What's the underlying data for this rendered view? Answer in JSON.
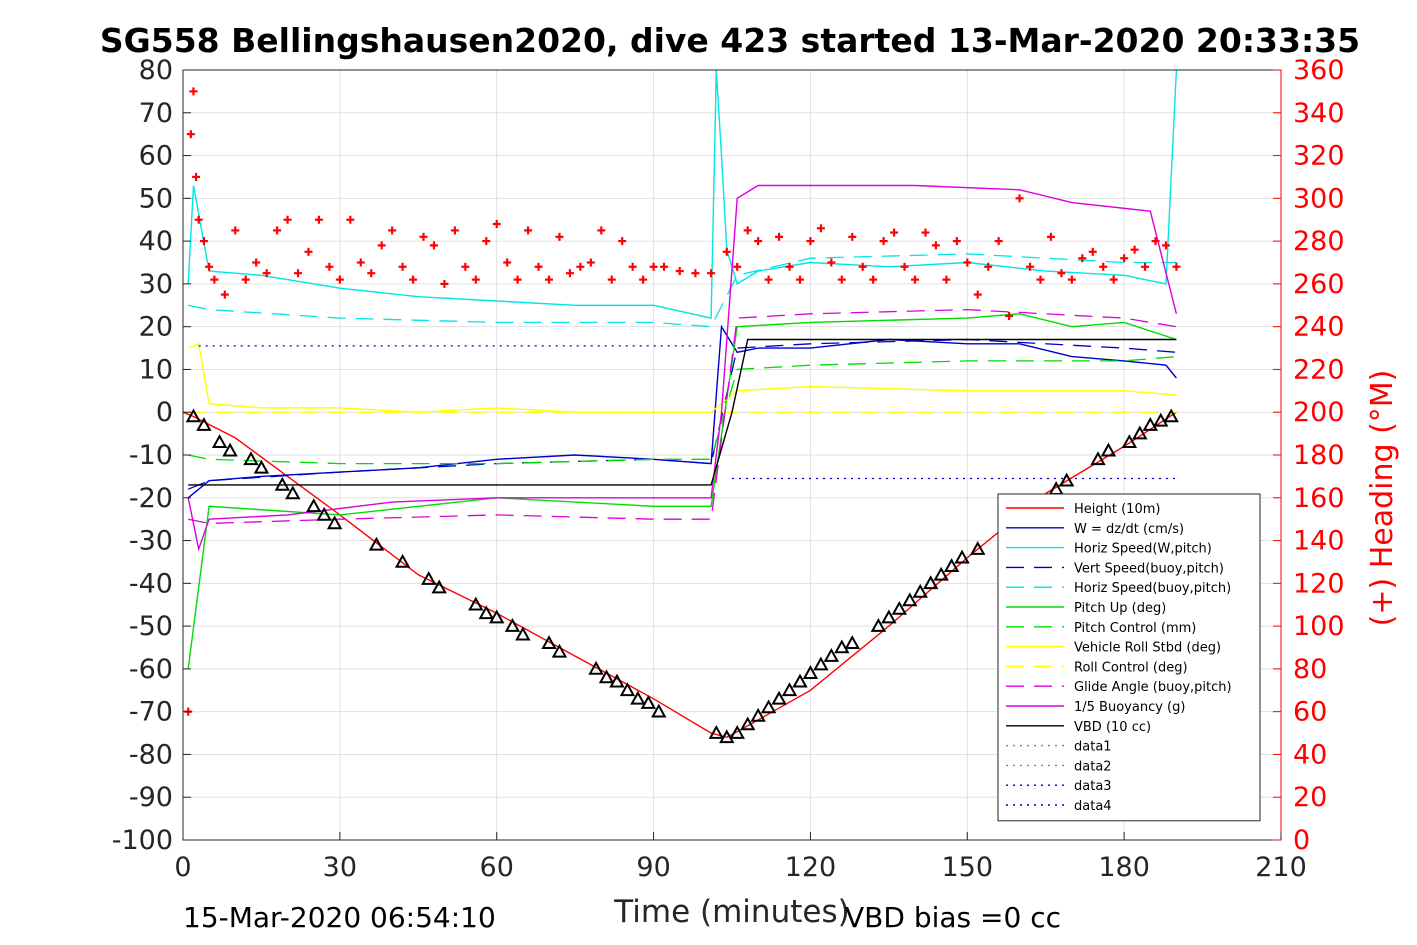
{
  "chart_data": {
    "type": "line",
    "title": "SG558 Bellingshausen2020, dive 423 started 13-Mar-2020 20:33:35",
    "xlabel": "Time (minutes)",
    "ylabel_right": "(+) Heading (°M)",
    "xlim": [
      0,
      210
    ],
    "ylim_left": [
      -100,
      80
    ],
    "ylim_right": [
      0,
      360
    ],
    "x_ticks": [
      "0",
      "30",
      "60",
      "90",
      "120",
      "150",
      "180",
      "210"
    ],
    "y_ticks_left": [
      "80",
      "70",
      "60",
      "50",
      "40",
      "30",
      "20",
      "10",
      "0",
      "-10",
      "-20",
      "-30",
      "-40",
      "-50",
      "-60",
      "-70",
      "-80",
      "-90",
      "-100"
    ],
    "y_ticks_right": [
      "360",
      "340",
      "320",
      "300",
      "280",
      "260",
      "240",
      "220",
      "200",
      "180",
      "160",
      "140",
      "120",
      "100",
      "80",
      "60",
      "40",
      "20",
      "0"
    ],
    "grid": true,
    "legend_position": "lower-right",
    "footer_left": "15-Mar-2020 06:54:10",
    "footer_right": "VBD bias =0 cc",
    "colors": {
      "height": "#ff0000",
      "w": "#0000cc",
      "horiz_speed": "#00e5e5",
      "pitch": "#00dd00",
      "roll": "#ffff00",
      "glide": "#dd00dd",
      "vbd": "#000000",
      "heading": "#ff0000"
    },
    "series": [
      {
        "name": "Height (10m)",
        "color": "#ff0000",
        "style": "solid",
        "x": [
          0,
          2,
          10,
          20,
          30,
          45,
          60,
          75,
          90,
          101,
          104,
          107,
          120,
          135,
          150,
          165,
          180,
          190
        ],
        "y": [
          0,
          -1,
          -6,
          -15,
          -24,
          -38,
          -47,
          -57,
          -67,
          -75,
          -76,
          -74,
          -65,
          -50,
          -34,
          -19,
          -8,
          0
        ]
      },
      {
        "name": "W = dz/dt (cm/s)",
        "color": "#0000cc",
        "style": "solid",
        "x": [
          1,
          5,
          15,
          30,
          45,
          60,
          75,
          90,
          101,
          103,
          106,
          110,
          120,
          135,
          150,
          160,
          170,
          180,
          188,
          190
        ],
        "y": [
          -20,
          -16,
          -15,
          -14,
          -13,
          -11,
          -10,
          -11,
          -12,
          20,
          14,
          15,
          15,
          17,
          16,
          16,
          13,
          12,
          11,
          8
        ]
      },
      {
        "name": "Horiz Speed(W,pitch)",
        "color": "#00e5e5",
        "style": "solid",
        "x": [
          1,
          2,
          5,
          15,
          30,
          45,
          60,
          75,
          90,
          101,
          102,
          103,
          104,
          106,
          110,
          120,
          135,
          150,
          165,
          180,
          188,
          190
        ],
        "y": [
          30,
          53,
          33,
          32,
          29,
          27,
          26,
          25,
          25,
          22,
          80,
          60,
          38,
          30,
          33,
          35,
          34,
          35,
          33,
          32,
          30,
          80
        ]
      },
      {
        "name": "Vert Speed(buoy,pitch)",
        "color": "#0000cc",
        "style": "dashed",
        "x": [
          1,
          5,
          30,
          60,
          90,
          101,
          106,
          120,
          150,
          180,
          190
        ],
        "y": [
          -18,
          -16,
          -14,
          -12,
          -11,
          -12,
          15,
          16,
          17,
          15,
          14
        ]
      },
      {
        "name": "Horiz Speed(buoy,pitch)",
        "color": "#00e5e5",
        "style": "dashed",
        "x": [
          1,
          5,
          30,
          60,
          90,
          101,
          106,
          120,
          150,
          180,
          190
        ],
        "y": [
          25,
          24,
          22,
          21,
          21,
          20,
          32,
          36,
          37,
          35,
          35
        ]
      },
      {
        "name": "Pitch Up (deg)",
        "color": "#00dd00",
        "style": "solid",
        "x": [
          1,
          5,
          30,
          60,
          90,
          101,
          106,
          120,
          150,
          160,
          170,
          180,
          190
        ],
        "y": [
          -60,
          -22,
          -24,
          -20,
          -22,
          -22,
          20,
          21,
          22,
          23,
          20,
          21,
          17
        ]
      },
      {
        "name": "Pitch Control (mm)",
        "color": "#00dd00",
        "style": "dashed",
        "x": [
          1,
          5,
          30,
          60,
          90,
          101,
          106,
          120,
          150,
          180,
          190
        ],
        "y": [
          -10,
          -11,
          -12,
          -12,
          -11,
          -11,
          10,
          11,
          12,
          12,
          13
        ]
      },
      {
        "name": "Vehicle Roll Stbd (deg)",
        "color": "#ffff00",
        "style": "solid",
        "x": [
          1,
          3,
          5,
          15,
          30,
          45,
          60,
          75,
          90,
          101,
          106,
          120,
          150,
          180,
          190
        ],
        "y": [
          15,
          16,
          2,
          1,
          1,
          0,
          1,
          0,
          0,
          0,
          5,
          6,
          5,
          5,
          4
        ]
      },
      {
        "name": "Roll Control (deg)",
        "color": "#ffff00",
        "style": "dashed",
        "x": [
          1,
          5,
          30,
          60,
          90,
          101,
          106,
          120,
          150,
          180,
          190
        ],
        "y": [
          0,
          0,
          0,
          0,
          0,
          0,
          0,
          0,
          0,
          0,
          0
        ]
      },
      {
        "name": "Glide Angle (buoy,pitch)",
        "color": "#dd00dd",
        "style": "dashed",
        "x": [
          1,
          5,
          30,
          60,
          90,
          101,
          106,
          120,
          150,
          180,
          190
        ],
        "y": [
          -25,
          -26,
          -25,
          -24,
          -25,
          -25,
          22,
          23,
          24,
          22,
          20
        ]
      },
      {
        "name": "1/5 Buoyancy (g)",
        "color": "#dd00dd",
        "style": "solid",
        "x": [
          1,
          3,
          5,
          20,
          40,
          60,
          80,
          101,
          103,
          106,
          110,
          140,
          160,
          170,
          185,
          190
        ],
        "y": [
          -20,
          -32,
          -25,
          -24,
          -21,
          -20,
          -20,
          -20,
          0,
          50,
          53,
          53,
          52,
          49,
          47,
          23
        ]
      },
      {
        "name": "VBD (10 cc)",
        "color": "#000000",
        "style": "solid",
        "x": [
          1,
          3,
          6,
          101,
          105,
          108,
          190
        ],
        "y": [
          -17,
          -17,
          -17,
          -17,
          0,
          17,
          17
        ]
      },
      {
        "name": "data1",
        "color": "#00dd00",
        "style": "dotted",
        "x": [],
        "y": []
      },
      {
        "name": "data2",
        "color": "#00dd00",
        "style": "dotted",
        "x": [],
        "y": []
      },
      {
        "name": "data3",
        "color": "#0000cc",
        "style": "dotted",
        "x": [
          3,
          101
        ],
        "y": [
          15.5,
          15.5
        ]
      },
      {
        "name": "data4",
        "color": "#0000cc",
        "style": "dotted",
        "x": [
          105,
          190
        ],
        "y": [
          -15.5,
          -15.5
        ]
      }
    ],
    "heading": {
      "name": "Heading",
      "axis": "right",
      "marker": "+",
      "color": "#ff0000",
      "x": [
        1,
        1.5,
        2,
        2.5,
        3,
        4,
        5,
        6,
        8,
        10,
        12,
        14,
        16,
        18,
        20,
        22,
        24,
        26,
        28,
        30,
        32,
        34,
        36,
        38,
        40,
        42,
        44,
        46,
        48,
        50,
        52,
        54,
        56,
        58,
        60,
        62,
        64,
        66,
        68,
        70,
        72,
        74,
        76,
        78,
        80,
        82,
        84,
        86,
        88,
        90,
        92,
        95,
        98,
        101,
        104,
        106,
        108,
        110,
        112,
        114,
        116,
        118,
        120,
        122,
        124,
        126,
        128,
        130,
        132,
        134,
        136,
        138,
        140,
        142,
        144,
        146,
        148,
        150,
        152,
        154,
        156,
        158,
        160,
        162,
        164,
        166,
        168,
        170,
        172,
        174,
        176,
        178,
        180,
        182,
        184,
        186,
        188,
        190
      ],
      "y": [
        60,
        330,
        350,
        310,
        290,
        280,
        268,
        262,
        255,
        285,
        262,
        270,
        265,
        285,
        290,
        265,
        275,
        290,
        268,
        262,
        290,
        270,
        265,
        278,
        285,
        268,
        262,
        282,
        278,
        260,
        285,
        268,
        262,
        280,
        288,
        270,
        262,
        285,
        268,
        262,
        282,
        265,
        268,
        270,
        285,
        262,
        280,
        268,
        262,
        268,
        268,
        266,
        265,
        265,
        275,
        268,
        285,
        280,
        262,
        282,
        268,
        262,
        280,
        286,
        270,
        262,
        282,
        268,
        262,
        280,
        284,
        268,
        262,
        284,
        278,
        262,
        280,
        270,
        255,
        268,
        280,
        245,
        300,
        268,
        262,
        282,
        265,
        262,
        272,
        275,
        268,
        262,
        272,
        276,
        268,
        280,
        278,
        268
      ]
    },
    "vbd_markers": {
      "marker": "triangle",
      "x": [
        2,
        4,
        7,
        9,
        13,
        15,
        19,
        21,
        25,
        27,
        29,
        37,
        42,
        47,
        49,
        56,
        58,
        60,
        63,
        65,
        70,
        72,
        79,
        81,
        83,
        85,
        87,
        89,
        91,
        102,
        104,
        106,
        108,
        110,
        112,
        114,
        116,
        118,
        120,
        122,
        124,
        126,
        128,
        133,
        135,
        137,
        139,
        141,
        143,
        145,
        147,
        149,
        152,
        167,
        169,
        175,
        177,
        181,
        183,
        185,
        187,
        189
      ],
      "y": [
        -1,
        -3,
        -7,
        -9,
        -11,
        -13,
        -17,
        -19,
        -22,
        -24,
        -26,
        -31,
        -35,
        -39,
        -41,
        -45,
        -47,
        -48,
        -50,
        -52,
        -54,
        -56,
        -60,
        -62,
        -63,
        -65,
        -67,
        -68,
        -70,
        -75,
        -76,
        -75,
        -73,
        -71,
        -69,
        -67,
        -65,
        -63,
        -61,
        -59,
        -57,
        -55,
        -54,
        -50,
        -48,
        -46,
        -44,
        -42,
        -40,
        -38,
        -36,
        -34,
        -32,
        -18,
        -16,
        -11,
        -9,
        -7,
        -5,
        -3,
        -2,
        -1
      ]
    }
  }
}
